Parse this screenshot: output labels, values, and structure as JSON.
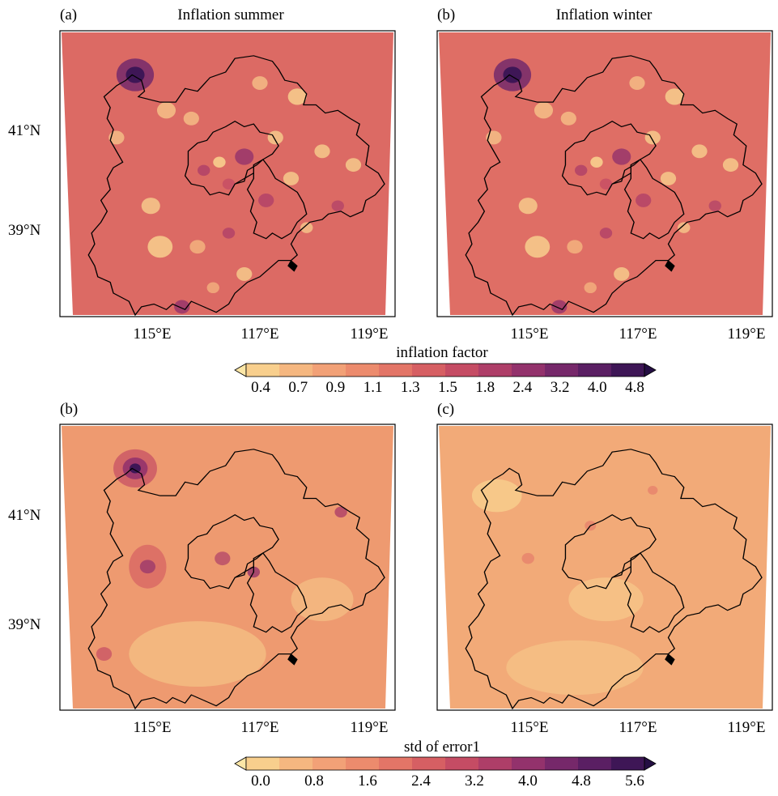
{
  "panels": [
    {
      "id": "a",
      "tag": "(a)",
      "title": "Inflation summer",
      "lat_labels": [
        "41°N",
        "39°N"
      ],
      "lon_labels": [
        "115°E",
        "117°E",
        "119°E"
      ]
    },
    {
      "id": "b1",
      "tag": "(b)",
      "title": "Inflation winter",
      "lat_labels": [],
      "lon_labels": [
        "115°E",
        "117°E",
        "119°E"
      ]
    },
    {
      "id": "b2",
      "tag": "(b)",
      "title": "",
      "lat_labels": [
        "41°N",
        "39°N"
      ],
      "lon_labels": [
        "115°E",
        "117°E",
        "119°E"
      ]
    },
    {
      "id": "c",
      "tag": "(c)",
      "title": "",
      "lat_labels": [],
      "lon_labels": [
        "115°E",
        "117°E",
        "119°E"
      ]
    }
  ],
  "colorbars": [
    {
      "label": "inflation factor",
      "ticks": [
        "0.4",
        "0.7",
        "0.9",
        "1.1",
        "1.3",
        "1.5",
        "1.8",
        "2.4",
        "3.2",
        "4.0",
        "4.8"
      ],
      "colors": [
        "#fbe6a6",
        "#f8cf8d",
        "#f5b780",
        "#f2a177",
        "#ec8b6d",
        "#e37567",
        "#d65f63",
        "#c54c64",
        "#ae3e68",
        "#93326c",
        "#76286a",
        "#5a1f63",
        "#3e1656",
        "#240e43"
      ]
    },
    {
      "label": "std of error1",
      "ticks": [
        "0.0",
        "0.8",
        "1.6",
        "2.4",
        "3.2",
        "4.0",
        "4.8",
        "5.6"
      ],
      "colors": [
        "#fbe6a6",
        "#f8cf8d",
        "#f5b780",
        "#f2a177",
        "#ec8b6d",
        "#e37567",
        "#d65f63",
        "#c54c64",
        "#ae3e68",
        "#93326c",
        "#76286a",
        "#5a1f63",
        "#3e1656",
        "#240e43"
      ]
    }
  ]
}
